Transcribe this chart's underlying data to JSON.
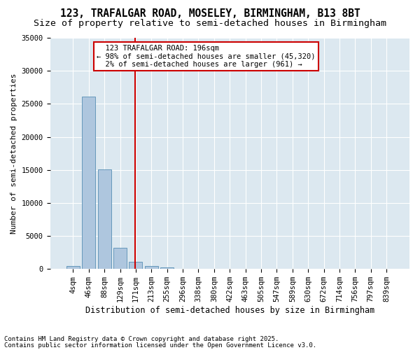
{
  "title1": "123, TRAFALGAR ROAD, MOSELEY, BIRMINGHAM, B13 8BT",
  "title2": "Size of property relative to semi-detached houses in Birmingham",
  "xlabel": "Distribution of semi-detached houses by size in Birmingham",
  "ylabel": "Number of semi-detached properties",
  "bar_color": "#aec6de",
  "bar_edge_color": "#6699bb",
  "background_color": "#dce8f0",
  "bins": [
    "4sqm",
    "46sqm",
    "88sqm",
    "129sqm",
    "171sqm",
    "213sqm",
    "255sqm",
    "296sqm",
    "338sqm",
    "380sqm",
    "422sqm",
    "463sqm",
    "505sqm",
    "547sqm",
    "589sqm",
    "630sqm",
    "672sqm",
    "714sqm",
    "756sqm",
    "797sqm",
    "839sqm"
  ],
  "values": [
    400,
    26100,
    15100,
    3200,
    1100,
    400,
    200,
    0,
    0,
    0,
    0,
    0,
    0,
    0,
    0,
    0,
    0,
    0,
    0,
    0,
    0
  ],
  "property_label": "123 TRAFALGAR ROAD: 196sqm",
  "pct_smaller": 98,
  "n_smaller": 45320,
  "pct_larger": 2,
  "n_larger": 961,
  "vline_color": "#cc0000",
  "ylim": [
    0,
    35000
  ],
  "yticks": [
    0,
    5000,
    10000,
    15000,
    20000,
    25000,
    30000,
    35000
  ],
  "footnote1": "Contains HM Land Registry data © Crown copyright and database right 2025.",
  "footnote2": "Contains public sector information licensed under the Open Government Licence v3.0.",
  "title1_fontsize": 10.5,
  "title2_fontsize": 9.5,
  "xlabel_fontsize": 8.5,
  "ylabel_fontsize": 8,
  "tick_fontsize": 7.5,
  "annotation_fontsize": 7.5,
  "footnote_fontsize": 6.5,
  "vline_x": 3.95
}
